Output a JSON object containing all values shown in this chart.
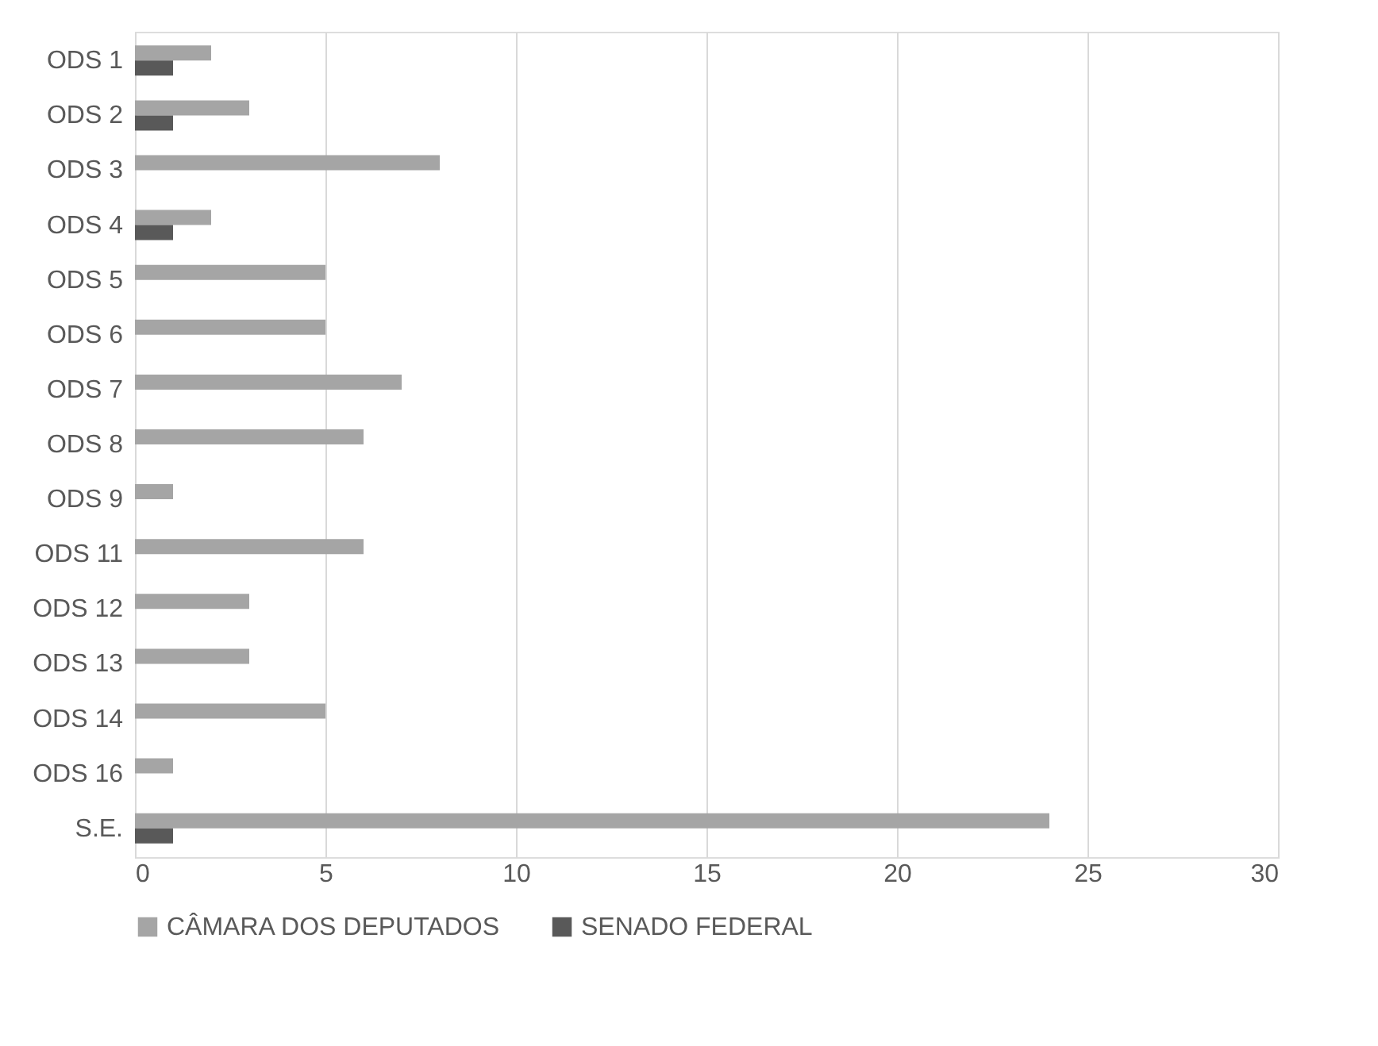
{
  "chart_data": {
    "type": "bar",
    "orientation": "horizontal",
    "categories": [
      "ODS 1",
      "ODS 2",
      "ODS 3",
      "ODS 4",
      "ODS 5",
      "ODS 6",
      "ODS 7",
      "ODS 8",
      "ODS 9",
      "ODS 11",
      "ODS 12",
      "ODS 13",
      "ODS 14",
      "ODS 16",
      "S.E."
    ],
    "series": [
      {
        "name": "CÂMARA DOS DEPUTADOS",
        "color": "#a5a5a5",
        "values": [
          2,
          3,
          8,
          2,
          5,
          5,
          7,
          6,
          1,
          6,
          3,
          3,
          5,
          1,
          24
        ]
      },
      {
        "name": "SENADO FEDERAL",
        "color": "#595959",
        "values": [
          1,
          1,
          null,
          1,
          null,
          null,
          null,
          null,
          null,
          null,
          null,
          null,
          null,
          null,
          1
        ]
      }
    ],
    "xlim": [
      0,
      30
    ],
    "xticks": [
      0,
      5,
      10,
      15,
      20,
      25,
      30
    ],
    "grid": "x",
    "legend": "bottom"
  }
}
